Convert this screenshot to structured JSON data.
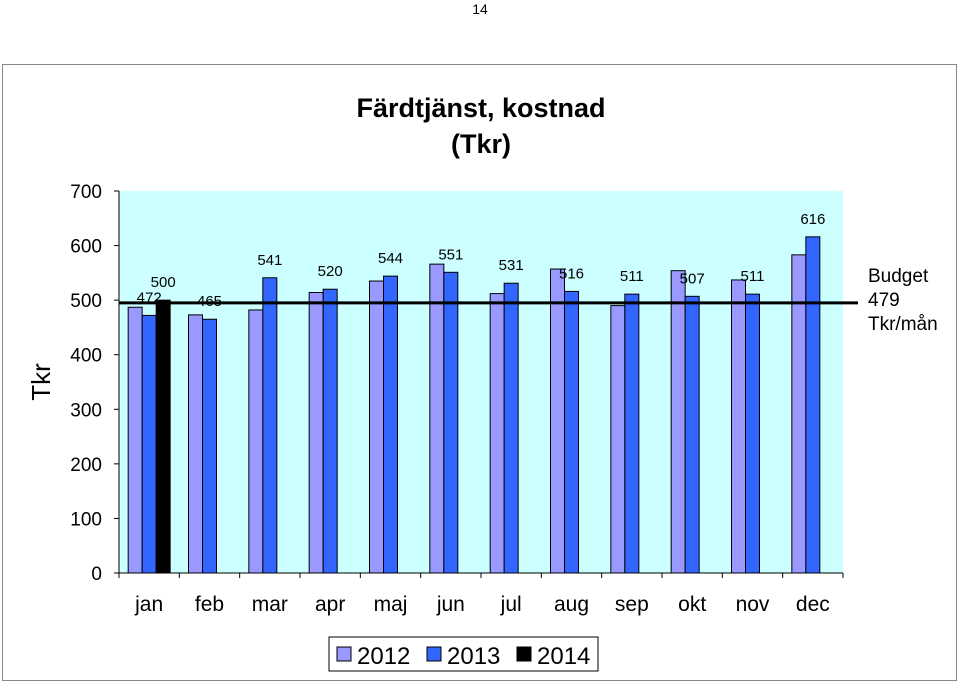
{
  "page_number": "14",
  "chart_data": {
    "type": "bar",
    "title_lines": [
      "Färdtjänst, kostnad",
      "(Tkr)"
    ],
    "ylabel": "Tkr",
    "xlabel": "",
    "ylim": [
      0,
      700
    ],
    "yticks": [
      0,
      100,
      200,
      300,
      400,
      500,
      600,
      700
    ],
    "categories": [
      "jan",
      "feb",
      "mar",
      "apr",
      "maj",
      "jun",
      "jul",
      "aug",
      "sep",
      "okt",
      "nov",
      "dec"
    ],
    "series": [
      {
        "name": "2012",
        "color": "#9999ff",
        "values": [
          487,
          473,
          482,
          514,
          535,
          566,
          512,
          557,
          490,
          554,
          537,
          583
        ]
      },
      {
        "name": "2013",
        "color": "#3366ff",
        "values": [
          472,
          465,
          541,
          520,
          544,
          551,
          531,
          516,
          511,
          507,
          511,
          616
        ]
      },
      {
        "name": "2014",
        "color": "#000000",
        "values": [
          500,
          null,
          null,
          null,
          null,
          null,
          null,
          null,
          null,
          null,
          null,
          null
        ]
      }
    ],
    "data_labels": [
      {
        "text": "472",
        "series": "2013",
        "category": "jan"
      },
      {
        "text": "500",
        "series": "2014",
        "category": "jan"
      },
      {
        "text": "465",
        "series": "2013",
        "category": "feb"
      },
      {
        "text": "541",
        "series": "2013",
        "category": "mar"
      },
      {
        "text": "520",
        "series": "2013",
        "category": "apr"
      },
      {
        "text": "544",
        "series": "2013",
        "category": "maj"
      },
      {
        "text": "551",
        "series": "2013",
        "category": "jun"
      },
      {
        "text": "531",
        "series": "2013",
        "category": "jul"
      },
      {
        "text": "516",
        "series": "2013",
        "category": "aug"
      },
      {
        "text": "511",
        "series": "2013",
        "category": "sep"
      },
      {
        "text": "507",
        "series": "2013",
        "category": "okt"
      },
      {
        "text": "511",
        "series": "2013",
        "category": "nov"
      },
      {
        "text": "616",
        "series": "2013",
        "category": "dec"
      }
    ],
    "reference_line": {
      "value": 495,
      "color": "#000000",
      "label_lines": [
        "Budget",
        "479",
        "Tkr/mån"
      ]
    },
    "plot_background": "#ccffff",
    "grid": false,
    "legend_position": "bottom"
  }
}
